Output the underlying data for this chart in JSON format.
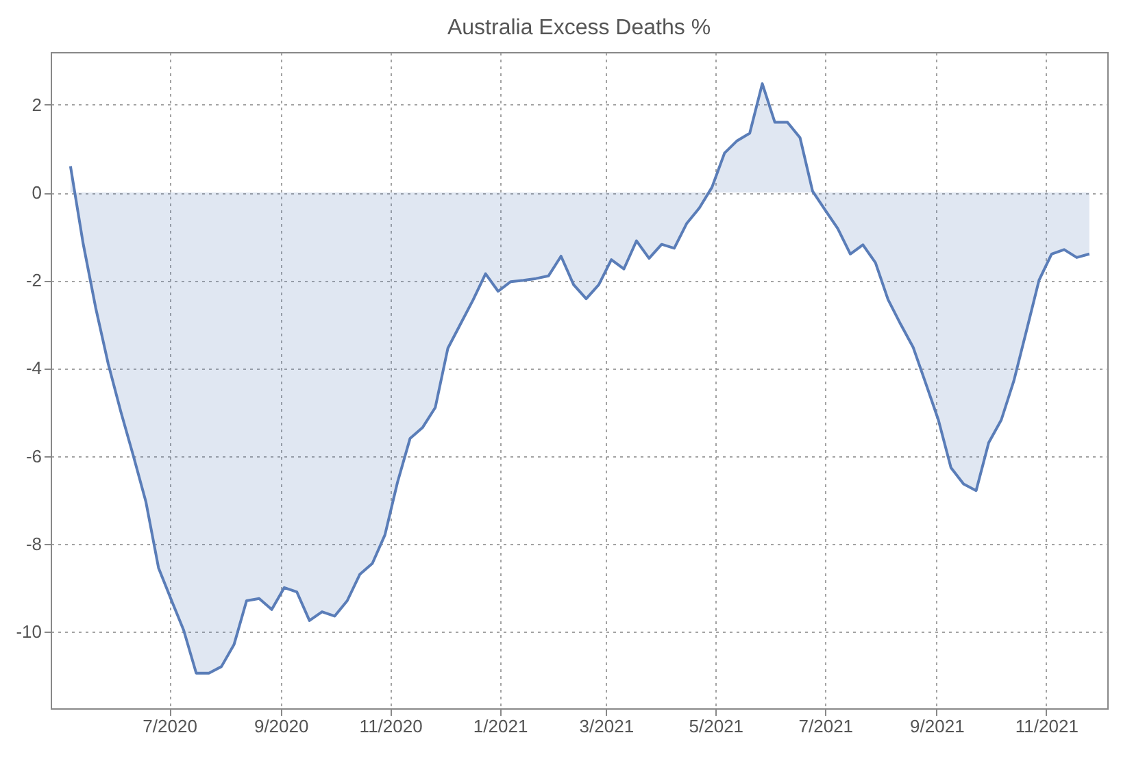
{
  "chart_data": {
    "type": "area",
    "title": "Australia Excess Deaths %",
    "x": [
      "2020-05-07",
      "2020-05-14",
      "2020-05-21",
      "2020-05-28",
      "2020-06-04",
      "2020-06-11",
      "2020-06-18",
      "2020-06-25",
      "2020-07-02",
      "2020-07-09",
      "2020-07-16",
      "2020-07-23",
      "2020-07-30",
      "2020-08-06",
      "2020-08-13",
      "2020-08-20",
      "2020-08-27",
      "2020-09-03",
      "2020-09-10",
      "2020-09-17",
      "2020-09-24",
      "2020-10-01",
      "2020-10-08",
      "2020-10-15",
      "2020-10-22",
      "2020-10-29",
      "2020-11-05",
      "2020-11-12",
      "2020-11-19",
      "2020-11-26",
      "2020-12-03",
      "2020-12-10",
      "2020-12-17",
      "2020-12-24",
      "2020-12-31",
      "2021-01-07",
      "2021-01-14",
      "2021-01-21",
      "2021-01-28",
      "2021-02-04",
      "2021-02-11",
      "2021-02-18",
      "2021-02-25",
      "2021-03-04",
      "2021-03-11",
      "2021-03-18",
      "2021-03-25",
      "2021-04-01",
      "2021-04-08",
      "2021-04-15",
      "2021-04-22",
      "2021-04-29",
      "2021-05-06",
      "2021-05-13",
      "2021-05-20",
      "2021-05-27",
      "2021-06-03",
      "2021-06-10",
      "2021-06-17",
      "2021-06-24",
      "2021-07-01",
      "2021-07-08",
      "2021-07-15",
      "2021-07-22",
      "2021-07-29",
      "2021-08-05",
      "2021-08-12",
      "2021-08-19",
      "2021-08-26",
      "2021-09-02",
      "2021-09-09",
      "2021-09-16",
      "2021-09-23",
      "2021-09-30",
      "2021-10-07",
      "2021-10-14",
      "2021-10-21",
      "2021-10-28",
      "2021-11-04",
      "2021-11-11",
      "2021-11-18",
      "2021-11-25"
    ],
    "series": [
      {
        "color": "#5a7db8",
        "values": [
          0.6,
          -1.15,
          -2.62,
          -3.9,
          -4.99,
          -6.0,
          -7.05,
          -8.55,
          -9.27,
          -9.97,
          -10.95,
          -10.95,
          -10.8,
          -10.3,
          -9.3,
          -9.25,
          -9.5,
          -9.0,
          -9.1,
          -9.75,
          -9.55,
          -9.65,
          -9.3,
          -8.7,
          -8.45,
          -7.8,
          -6.6,
          -5.6,
          -5.35,
          -4.9,
          -3.55,
          -3.0,
          -2.45,
          -1.85,
          -2.25,
          -2.03,
          -2.0,
          -1.96,
          -1.9,
          -1.45,
          -2.1,
          -2.42,
          -2.1,
          -1.53,
          -1.74,
          -1.1,
          -1.5,
          -1.18,
          -1.27,
          -0.7,
          -0.35,
          0.12,
          0.9,
          1.18,
          1.35,
          2.48,
          1.6,
          1.6,
          1.25,
          0.03,
          -0.4,
          -0.82,
          -1.4,
          -1.19,
          -1.6,
          -2.44,
          -3.0,
          -3.53,
          -4.35,
          -5.18,
          -6.27,
          -6.64,
          -6.79,
          -5.7,
          -5.18,
          -4.29,
          -3.15,
          -2.0,
          -1.4,
          -1.3,
          -1.48,
          -1.4
        ]
      }
    ],
    "xlim": [
      "2020-04-26",
      "2021-12-05"
    ],
    "xticks": [
      {
        "value": "2020-07-01",
        "label": "7/2020"
      },
      {
        "value": "2020-09-01",
        "label": "9/2020"
      },
      {
        "value": "2020-11-01",
        "label": "11/2020"
      },
      {
        "value": "2021-01-01",
        "label": "1/2021"
      },
      {
        "value": "2021-03-01",
        "label": "3/2021"
      },
      {
        "value": "2021-05-01",
        "label": "5/2021"
      },
      {
        "value": "2021-07-01",
        "label": "7/2021"
      },
      {
        "value": "2021-09-01",
        "label": "9/2021"
      },
      {
        "value": "2021-11-01",
        "label": "11/2021"
      }
    ],
    "ylim": [
      -11.75,
      3.2
    ],
    "yticks": [
      -10,
      -8,
      -6,
      -4,
      -2,
      0,
      2
    ],
    "grid": true
  }
}
